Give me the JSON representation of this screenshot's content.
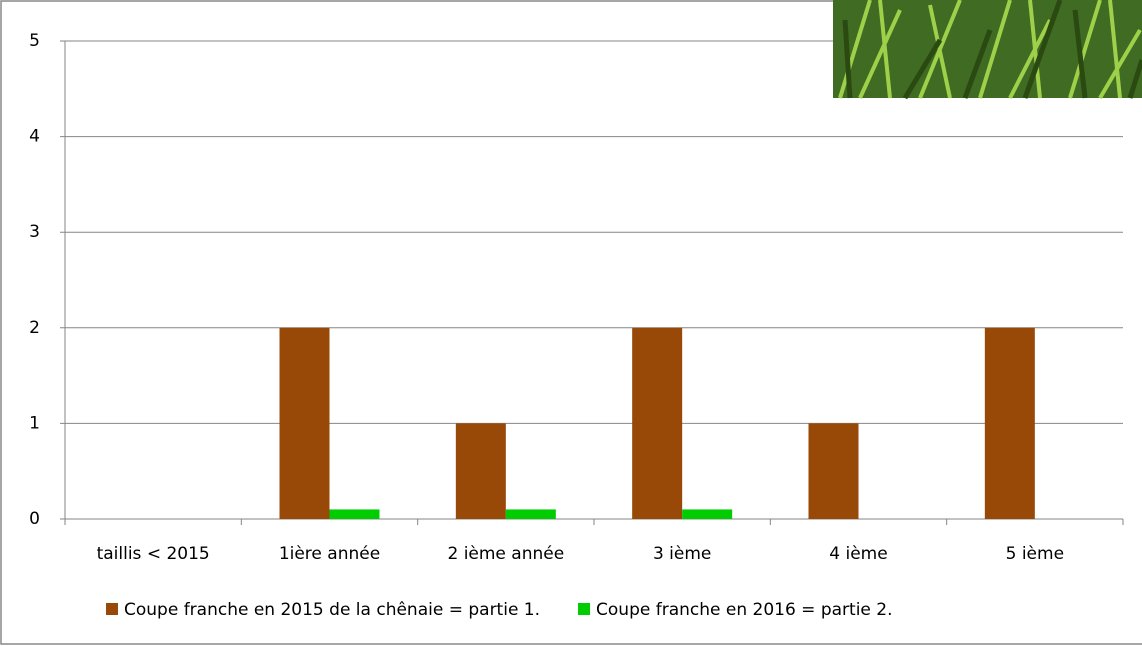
{
  "chart_data": {
    "type": "bar",
    "categories": [
      "taillis < 2015",
      "1ière année",
      "2 ième année",
      "3 ième",
      "4 ième",
      "5 ième"
    ],
    "series": [
      {
        "name": "Coupe franche en 2015 de la chênaie = partie 1.",
        "color": "#984807",
        "values": [
          0,
          2,
          1,
          2,
          1,
          2
        ]
      },
      {
        "name": "Coupe franche en 2016 = partie 2.",
        "color": "#00cc00",
        "values": [
          0,
          0.1,
          0.1,
          0.1,
          0,
          0
        ]
      }
    ],
    "ylim": [
      0,
      5
    ],
    "yticks": [
      0,
      1,
      2,
      3,
      4,
      5
    ],
    "grid": true,
    "legend": "bottom"
  }
}
